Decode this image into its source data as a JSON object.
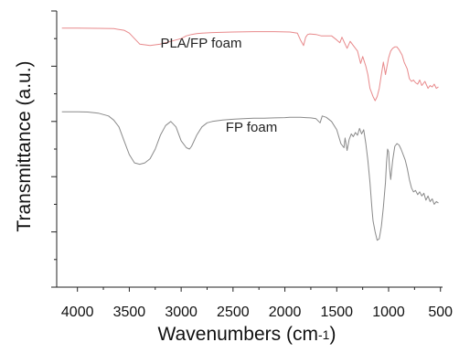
{
  "chart_data": {
    "type": "line",
    "xlabel": "Wavenumbers (cm",
    "xlabel_sup": "-1",
    "xlabel_close": ")",
    "ylabel": "Transmittance (a.u.)",
    "xlim": [
      4200,
      480
    ],
    "x_reversed": true,
    "xticks": [
      "4000",
      "3500",
      "3000",
      "2500",
      "2000",
      "1500",
      "1000",
      "500"
    ],
    "ylim": [
      0,
      10
    ],
    "y_tick_labels_shown": false,
    "grid": false,
    "series": [
      {
        "name": "PLA/FP foam",
        "color": "#e8898b",
        "x": [
          4150,
          4000,
          3800,
          3650,
          3550,
          3500,
          3450,
          3400,
          3300,
          3200,
          3100,
          3000,
          2950,
          2900,
          2850,
          2800,
          2700,
          2500,
          2300,
          2100,
          1950,
          1880,
          1850,
          1820,
          1800,
          1780,
          1760,
          1700,
          1650,
          1600,
          1550,
          1500,
          1470,
          1450,
          1420,
          1400,
          1370,
          1340,
          1300,
          1270,
          1250,
          1220,
          1200,
          1180,
          1150,
          1130,
          1110,
          1090,
          1070,
          1050,
          1030,
          1000,
          980,
          960,
          940,
          920,
          900,
          870,
          850,
          820,
          800,
          780,
          760,
          740,
          720,
          700,
          680,
          650,
          620,
          600,
          580,
          560,
          540,
          520
        ],
        "y": [
          9.38,
          9.38,
          9.37,
          9.36,
          9.3,
          9.2,
          9.0,
          8.8,
          8.75,
          8.8,
          8.9,
          9.0,
          9.1,
          9.15,
          9.18,
          9.2,
          9.22,
          9.24,
          9.25,
          9.25,
          9.24,
          9.2,
          8.95,
          8.75,
          9.05,
          9.15,
          9.17,
          9.15,
          9.1,
          9.1,
          9.1,
          8.95,
          8.85,
          9.05,
          8.8,
          8.65,
          8.9,
          8.75,
          8.55,
          8.1,
          8.35,
          8.0,
          7.7,
          7.2,
          6.9,
          6.75,
          6.9,
          7.2,
          7.7,
          8.15,
          7.7,
          8.3,
          8.55,
          8.65,
          8.7,
          8.7,
          8.6,
          8.4,
          8.15,
          7.9,
          7.55,
          7.45,
          7.5,
          7.4,
          7.35,
          7.5,
          7.3,
          7.45,
          7.2,
          7.3,
          7.25,
          7.35,
          7.2,
          7.25
        ]
      },
      {
        "name": "FP foam",
        "color": "#8a8a8a",
        "x": [
          4150,
          4000,
          3900,
          3800,
          3700,
          3650,
          3600,
          3550,
          3500,
          3450,
          3400,
          3350,
          3300,
          3250,
          3200,
          3150,
          3100,
          3050,
          3000,
          2950,
          2920,
          2900,
          2850,
          2800,
          2750,
          2700,
          2600,
          2500,
          2400,
          2300,
          2200,
          2100,
          2000,
          1950,
          1900,
          1850,
          1800,
          1750,
          1700,
          1660,
          1640,
          1600,
          1550,
          1500,
          1460,
          1430,
          1420,
          1400,
          1380,
          1360,
          1340,
          1320,
          1300,
          1280,
          1260,
          1240,
          1220,
          1200,
          1180,
          1160,
          1150,
          1130,
          1110,
          1090,
          1070,
          1050,
          1030,
          1020,
          1010,
          1000,
          990,
          980,
          960,
          940,
          920,
          900,
          880,
          860,
          840,
          820,
          800,
          780,
          760,
          740,
          720,
          700,
          680,
          660,
          640,
          620,
          600,
          580,
          560,
          540,
          520
        ],
        "y": [
          6.35,
          6.35,
          6.34,
          6.3,
          6.2,
          6.05,
          5.8,
          5.3,
          4.8,
          4.5,
          4.45,
          4.5,
          4.65,
          5.0,
          5.5,
          5.85,
          6.0,
          5.8,
          5.3,
          5.05,
          5.0,
          5.1,
          5.5,
          5.8,
          5.95,
          6.0,
          6.05,
          6.08,
          6.1,
          6.12,
          6.12,
          6.13,
          6.14,
          6.15,
          6.15,
          6.15,
          6.14,
          6.13,
          6.1,
          5.95,
          6.2,
          6.15,
          6.0,
          5.7,
          5.2,
          5.05,
          5.4,
          4.95,
          5.35,
          5.55,
          5.45,
          5.6,
          5.5,
          5.75,
          5.55,
          5.7,
          5.2,
          4.6,
          3.8,
          2.8,
          2.4,
          2.0,
          1.7,
          1.75,
          2.2,
          2.9,
          3.8,
          4.5,
          5.0,
          4.9,
          4.3,
          3.9,
          4.6,
          5.1,
          5.2,
          5.15,
          5.0,
          4.8,
          4.6,
          4.3,
          3.9,
          3.6,
          3.45,
          3.5,
          3.35,
          3.45,
          3.3,
          3.4,
          3.15,
          3.3,
          3.1,
          3.2,
          3.0,
          3.1,
          3.05
        ]
      }
    ]
  }
}
